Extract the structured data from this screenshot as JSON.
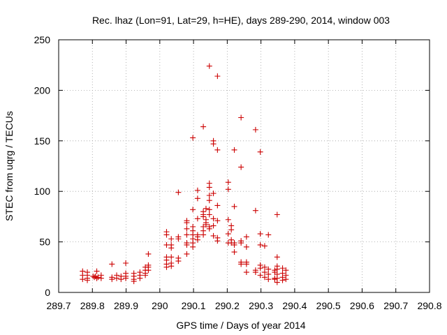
{
  "chart_data": {
    "type": "scatter",
    "title": "Rec. lhaz (Lon=91, Lat=29, h=HE), days 289-290, 2014, window 003",
    "xlabel": "GPS time / Days of year 2014",
    "ylabel": "STEC from uqrg / TECUs",
    "xlim": [
      289.7,
      290.8
    ],
    "ylim": [
      0,
      250
    ],
    "grid": true,
    "marker": "+",
    "marker_color": "#cc0000",
    "x_ticks": [
      {
        "value": 289.7,
        "label": "289.7"
      },
      {
        "value": 289.8,
        "label": "289.8"
      },
      {
        "value": 289.9,
        "label": "289.9"
      },
      {
        "value": 290.0,
        "label": "290"
      },
      {
        "value": 290.1,
        "label": "290.1"
      },
      {
        "value": 290.2,
        "label": "290.2"
      },
      {
        "value": 290.3,
        "label": "290.3"
      },
      {
        "value": 290.4,
        "label": "290.4"
      },
      {
        "value": 290.5,
        "label": "290.5"
      },
      {
        "value": 290.6,
        "label": "290.6"
      },
      {
        "value": 290.7,
        "label": "290.7"
      },
      {
        "value": 290.8,
        "label": "290.8"
      }
    ],
    "y_ticks": [
      {
        "value": 0,
        "label": "0"
      },
      {
        "value": 50,
        "label": "50"
      },
      {
        "value": 100,
        "label": "100"
      },
      {
        "value": 150,
        "label": "150"
      },
      {
        "value": 200,
        "label": "200"
      },
      {
        "value": 250,
        "label": "250"
      }
    ],
    "series": [
      {
        "name": "STEC",
        "points": [
          [
            289.771,
            21
          ],
          [
            289.771,
            17
          ],
          [
            289.771,
            13
          ],
          [
            289.785,
            20
          ],
          [
            289.785,
            17
          ],
          [
            289.785,
            14
          ],
          [
            289.785,
            12
          ],
          [
            289.802,
            16
          ],
          [
            289.806,
            15
          ],
          [
            289.809,
            16
          ],
          [
            289.813,
            14
          ],
          [
            289.813,
            21
          ],
          [
            289.817,
            15
          ],
          [
            289.826,
            17
          ],
          [
            289.826,
            14
          ],
          [
            289.858,
            28
          ],
          [
            289.858,
            15
          ],
          [
            289.858,
            13
          ],
          [
            289.872,
            17
          ],
          [
            289.872,
            14
          ],
          [
            289.885,
            16
          ],
          [
            289.885,
            13
          ],
          [
            289.899,
            29
          ],
          [
            289.899,
            19
          ],
          [
            289.899,
            16
          ],
          [
            289.899,
            14
          ],
          [
            289.923,
            19
          ],
          [
            289.923,
            16
          ],
          [
            289.923,
            13
          ],
          [
            289.923,
            11
          ],
          [
            289.941,
            20
          ],
          [
            289.941,
            17
          ],
          [
            289.941,
            14
          ],
          [
            289.957,
            25
          ],
          [
            289.957,
            22
          ],
          [
            289.957,
            19
          ],
          [
            289.957,
            17
          ],
          [
            289.966,
            38
          ],
          [
            289.966,
            27
          ],
          [
            289.966,
            25
          ],
          [
            289.966,
            22
          ],
          [
            290.02,
            60
          ],
          [
            290.02,
            57
          ],
          [
            290.02,
            47
          ],
          [
            290.02,
            35
          ],
          [
            290.02,
            32
          ],
          [
            290.02,
            28
          ],
          [
            290.02,
            25
          ],
          [
            290.034,
            53
          ],
          [
            290.034,
            47
          ],
          [
            290.034,
            44
          ],
          [
            290.034,
            35
          ],
          [
            290.034,
            29
          ],
          [
            290.034,
            26
          ],
          [
            290.055,
            99
          ],
          [
            290.055,
            55
          ],
          [
            290.055,
            53
          ],
          [
            290.055,
            34
          ],
          [
            290.055,
            31
          ],
          [
            290.08,
            71
          ],
          [
            290.08,
            69
          ],
          [
            290.08,
            63
          ],
          [
            290.08,
            57
          ],
          [
            290.08,
            49
          ],
          [
            290.08,
            47
          ],
          [
            290.08,
            38
          ],
          [
            290.098,
            153
          ],
          [
            290.098,
            82
          ],
          [
            290.098,
            65
          ],
          [
            290.098,
            61
          ],
          [
            290.098,
            57
          ],
          [
            290.098,
            53
          ],
          [
            290.098,
            49
          ],
          [
            290.098,
            45
          ],
          [
            290.112,
            101
          ],
          [
            290.112,
            93
          ],
          [
            290.112,
            73
          ],
          [
            290.112,
            57
          ],
          [
            290.112,
            55
          ],
          [
            290.112,
            52
          ],
          [
            290.129,
            164
          ],
          [
            290.129,
            80
          ],
          [
            290.129,
            77
          ],
          [
            290.129,
            75
          ],
          [
            290.129,
            65
          ],
          [
            290.129,
            61
          ],
          [
            290.129,
            57
          ],
          [
            290.137,
            83
          ],
          [
            290.137,
            72
          ],
          [
            290.137,
            69
          ],
          [
            290.137,
            67
          ],
          [
            290.147,
            224
          ],
          [
            290.147,
            108
          ],
          [
            290.147,
            104
          ],
          [
            290.147,
            96
          ],
          [
            290.147,
            91
          ],
          [
            290.147,
            82
          ],
          [
            290.147,
            77
          ],
          [
            290.147,
            65
          ],
          [
            290.147,
            63
          ],
          [
            290.159,
            150
          ],
          [
            290.159,
            147
          ],
          [
            290.159,
            98
          ],
          [
            290.159,
            73
          ],
          [
            290.159,
            66
          ],
          [
            290.159,
            56
          ],
          [
            290.171,
            214
          ],
          [
            290.171,
            141
          ],
          [
            290.171,
            86
          ],
          [
            290.171,
            71
          ],
          [
            290.171,
            54
          ],
          [
            290.171,
            51
          ],
          [
            290.203,
            109
          ],
          [
            290.203,
            102
          ],
          [
            290.203,
            72
          ],
          [
            290.203,
            58
          ],
          [
            290.203,
            49
          ],
          [
            290.212,
            66
          ],
          [
            290.212,
            62
          ],
          [
            290.212,
            52
          ],
          [
            290.212,
            49
          ],
          [
            290.221,
            141
          ],
          [
            290.221,
            85
          ],
          [
            290.221,
            49
          ],
          [
            290.221,
            47
          ],
          [
            290.221,
            40
          ],
          [
            290.241,
            173
          ],
          [
            290.241,
            124
          ],
          [
            290.241,
            51
          ],
          [
            290.241,
            49
          ],
          [
            290.241,
            30
          ],
          [
            290.241,
            28
          ],
          [
            290.257,
            55
          ],
          [
            290.257,
            45
          ],
          [
            290.257,
            30
          ],
          [
            290.257,
            28
          ],
          [
            290.257,
            20
          ],
          [
            290.284,
            161
          ],
          [
            290.284,
            81
          ],
          [
            290.284,
            22
          ],
          [
            290.284,
            20
          ],
          [
            290.298,
            139
          ],
          [
            290.298,
            58
          ],
          [
            290.298,
            47
          ],
          [
            290.298,
            27
          ],
          [
            290.298,
            24
          ],
          [
            290.298,
            17
          ],
          [
            290.311,
            46
          ],
          [
            290.311,
            25
          ],
          [
            290.311,
            20
          ],
          [
            290.311,
            15
          ],
          [
            290.322,
            57
          ],
          [
            290.322,
            23
          ],
          [
            290.322,
            18
          ],
          [
            290.322,
            13
          ],
          [
            290.341,
            22
          ],
          [
            290.341,
            20
          ],
          [
            290.341,
            14
          ],
          [
            290.341,
            13
          ],
          [
            290.348,
            77
          ],
          [
            290.348,
            35
          ],
          [
            290.348,
            26
          ],
          [
            290.348,
            23
          ],
          [
            290.348,
            18
          ],
          [
            290.348,
            14
          ],
          [
            290.348,
            10
          ],
          [
            290.364,
            24
          ],
          [
            290.364,
            19
          ],
          [
            290.364,
            15
          ],
          [
            290.364,
            12
          ],
          [
            290.374,
            22
          ],
          [
            290.374,
            17
          ],
          [
            290.374,
            13
          ]
        ]
      }
    ]
  }
}
